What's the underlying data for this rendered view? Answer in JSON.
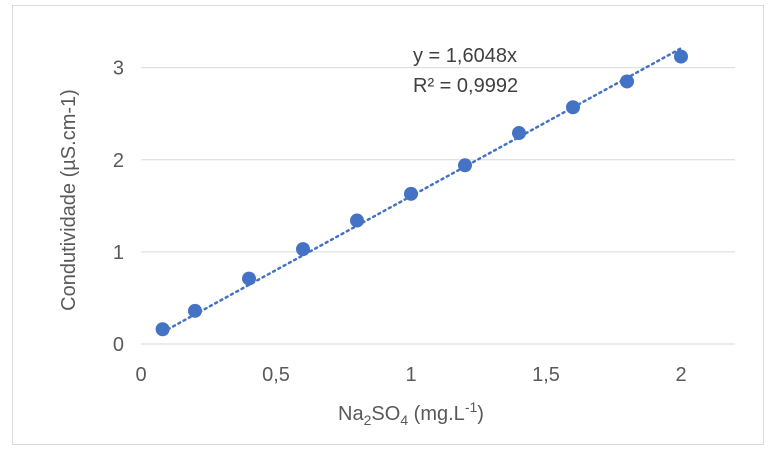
{
  "chart_data": {
    "type": "scatter",
    "x": [
      0.08,
      0.2,
      0.4,
      0.6,
      0.8,
      1.0,
      1.2,
      1.4,
      1.6,
      1.8,
      2.0
    ],
    "y": [
      0.16,
      0.36,
      0.71,
      1.03,
      1.34,
      1.63,
      1.94,
      2.29,
      2.57,
      2.85,
      3.12
    ],
    "xlabel_main": "Na",
    "xlabel_sub1": "2",
    "xlabel_mid": "SO",
    "xlabel_sub2": "4",
    "xlabel_tail": " (mg.L",
    "xlabel_sup": "-1",
    "xlabel_end": ")",
    "ylabel": "Condutividade (µS.cm-1)",
    "xlim": [
      0,
      2.2
    ],
    "ylim": [
      0,
      3.3
    ],
    "xticks": [
      0,
      0.5,
      1,
      1.5,
      2
    ],
    "xtick_labels": [
      "0",
      "0,5",
      "1",
      "1,5",
      "2"
    ],
    "yticks": [
      0,
      1,
      2,
      3
    ],
    "ytick_labels": [
      "0",
      "1",
      "2",
      "3"
    ],
    "grid": "horizontal",
    "trendline": {
      "type": "linear-through-origin",
      "slope": 1.6048,
      "equation": "y = 1,6048x",
      "r2_label": "R² = 0,9992"
    },
    "colors": {
      "marker": "#4472c4",
      "trendline": "#4472c4",
      "grid": "#d9d9d9"
    }
  }
}
